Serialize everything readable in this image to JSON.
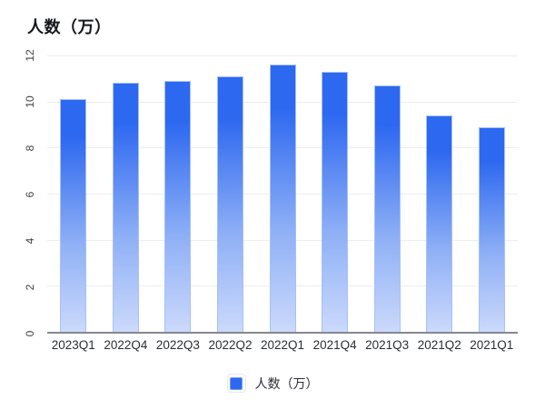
{
  "chart_data": {
    "type": "bar",
    "title": "人数（万）",
    "categories": [
      "2023Q1",
      "2022Q4",
      "2022Q3",
      "2022Q2",
      "2022Q1",
      "2021Q4",
      "2021Q3",
      "2021Q2",
      "2021Q1"
    ],
    "values": [
      10.1,
      10.8,
      10.9,
      11.1,
      11.6,
      11.3,
      10.7,
      9.4,
      8.9
    ],
    "xlabel": "",
    "ylabel": "",
    "ylim": [
      0,
      12
    ],
    "y_ticks": [
      0,
      2,
      4,
      6,
      8,
      10,
      12
    ],
    "grid": "horizontal gridlines on",
    "legend_position": "bottom-center"
  },
  "legend": {
    "label": "人数（万）",
    "swatch_icon": "blue-square-icon"
  },
  "colors": {
    "bar_top": "#2d68f0",
    "bar_mid": "#8fb0f6",
    "bar_bottom": "#cbd9fb",
    "bar_border": "#a6c0f8",
    "gridline": "#ededed",
    "axis_line": "#85888f",
    "title_text": "#16181d",
    "x_label": "#2a2e35",
    "y_label": "#3f434a",
    "legend_text": "#2a2e35",
    "background": "#ffffff"
  }
}
